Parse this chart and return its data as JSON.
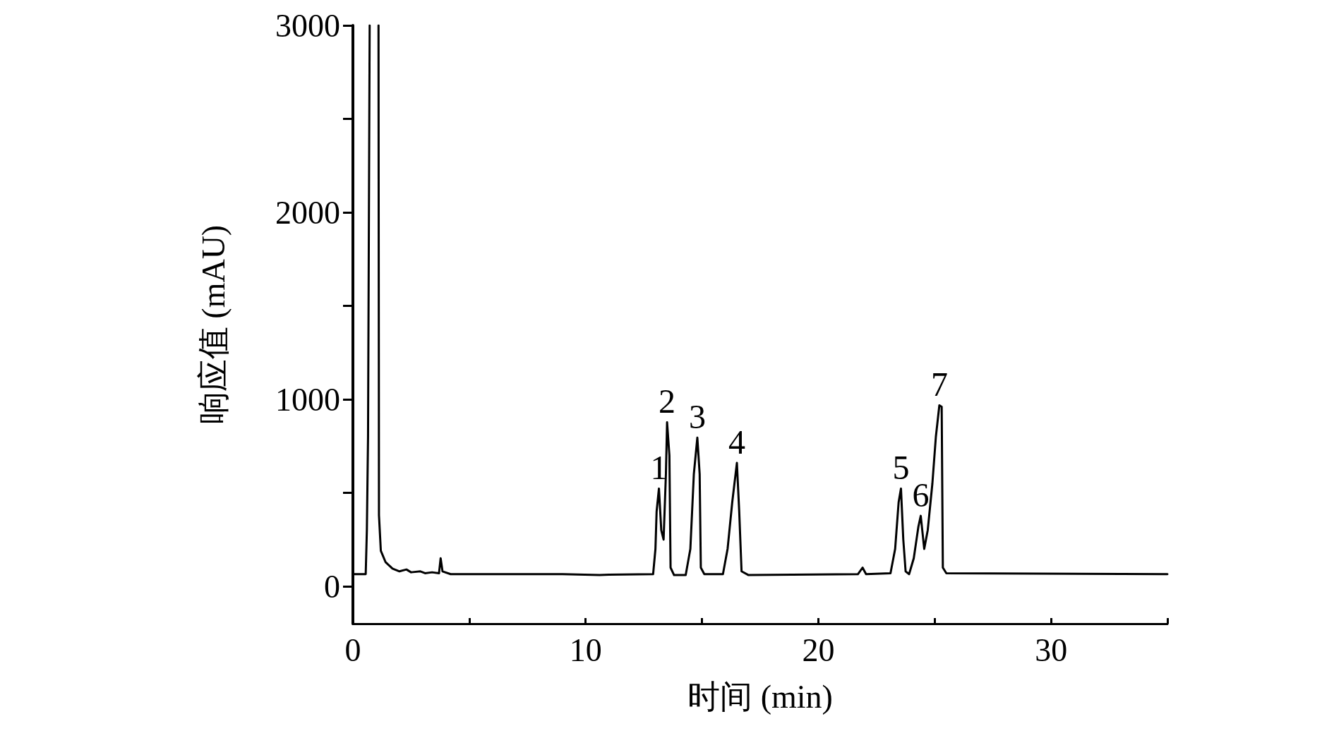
{
  "chart_data": {
    "type": "line",
    "xlabel": "时间 (min)",
    "ylabel": "响应值 (mAU)",
    "xlim": [
      0,
      35
    ],
    "ylim": [
      -200,
      3000
    ],
    "xticks": [
      0,
      {
        "value": 5,
        "label": null
      },
      10,
      {
        "value": 15,
        "label": null
      },
      20,
      {
        "value": 25,
        "label": null
      },
      30,
      {
        "value": 35,
        "label": null
      }
    ],
    "yticks": [
      0,
      {
        "value": 500,
        "label": null
      },
      1000,
      {
        "value": 1500,
        "label": null
      },
      2000,
      {
        "value": 2500,
        "label": null
      },
      3000
    ],
    "grid": false,
    "marker": "none",
    "line_style": "solid",
    "series": [
      {
        "color": "#000000",
        "x": [
          0,
          0.55,
          0.6,
          0.65,
          0.72,
          0.9,
          1.1,
          1.12,
          1.2,
          1.4,
          1.7,
          2.0,
          2.3,
          2.5,
          2.9,
          3.1,
          3.4,
          3.7,
          3.77,
          3.85,
          4.2,
          9,
          10.6,
          11,
          12.9,
          13.0,
          13.05,
          13.15,
          13.25,
          13.35,
          13.45,
          13.5,
          13.6,
          13.65,
          13.8,
          14.3,
          14.5,
          14.65,
          14.8,
          14.9,
          14.95,
          15.1,
          15.9,
          16.1,
          16.3,
          16.5,
          16.6,
          16.7,
          17,
          21.7,
          21.9,
          22.05,
          23.1,
          23.3,
          23.45,
          23.55,
          23.65,
          23.75,
          23.9,
          24.1,
          24.3,
          24.4,
          24.55,
          24.7,
          24.9,
          25.05,
          25.2,
          25.3,
          25.35,
          25.5,
          35
        ],
        "values": [
          65,
          65,
          300,
          800,
          3000,
          null,
          3000,
          380,
          190,
          130,
          95,
          80,
          90,
          75,
          80,
          70,
          75,
          70,
          150,
          80,
          65,
          65,
          60,
          62,
          65,
          200,
          400,
          523,
          300,
          250,
          600,
          877,
          700,
          100,
          60,
          60,
          200,
          600,
          795,
          600,
          100,
          65,
          65,
          200,
          450,
          660,
          400,
          80,
          60,
          65,
          100,
          65,
          70,
          200,
          450,
          523,
          250,
          80,
          65,
          150,
          320,
          377,
          200,
          300,
          550,
          800,
          968,
          960,
          100,
          70,
          65
        ]
      }
    ],
    "annotations": [
      {
        "text": "1",
        "x": 13.15,
        "y": 523
      },
      {
        "text": "2",
        "x": 13.5,
        "y": 877
      },
      {
        "text": "3",
        "x": 14.8,
        "y": 795
      },
      {
        "text": "4",
        "x": 16.5,
        "y": 660
      },
      {
        "text": "5",
        "x": 23.55,
        "y": 523
      },
      {
        "text": "6",
        "x": 24.4,
        "y": 377
      },
      {
        "text": "7",
        "x": 25.2,
        "y": 968
      }
    ]
  }
}
